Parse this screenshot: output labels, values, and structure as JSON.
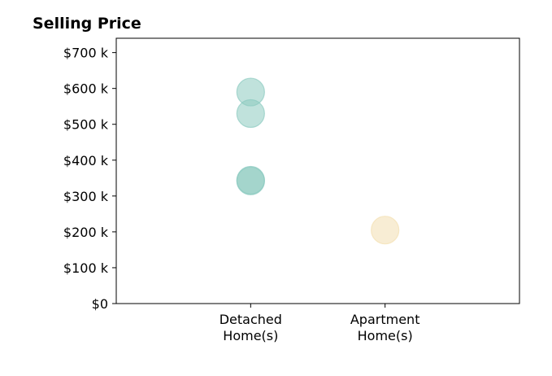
{
  "chart_data": {
    "type": "scatter",
    "title": "Selling Price",
    "xlabel": "",
    "ylabel": "",
    "categories": [
      [
        "Detached",
        "Home(s)"
      ],
      [
        "Apartment",
        "Home(s)"
      ]
    ],
    "y_ticks": [
      {
        "value": 0,
        "label": "$0"
      },
      {
        "value": 100,
        "label": "$100 k"
      },
      {
        "value": 200,
        "label": "$200 k"
      },
      {
        "value": 300,
        "label": "$300 k"
      },
      {
        "value": 400,
        "label": "$400 k"
      },
      {
        "value": 500,
        "label": "$500 k"
      },
      {
        "value": 600,
        "label": "$600 k"
      },
      {
        "value": 700,
        "label": "$700 k"
      }
    ],
    "ylim": [
      0,
      740
    ],
    "xlim": [
      -1,
      2
    ],
    "grid": false,
    "legend": "none",
    "points": [
      {
        "category_index": 0,
        "y": 590,
        "color": "#8ccbc0"
      },
      {
        "category_index": 0,
        "y": 530,
        "color": "#8ccbc0"
      },
      {
        "category_index": 0,
        "y": 344,
        "color": "#8ccbc0"
      },
      {
        "category_index": 0,
        "y": 342,
        "color": "#8ccbc0"
      },
      {
        "category_index": 1,
        "y": 205,
        "color": "#f3dfb0"
      }
    ]
  }
}
